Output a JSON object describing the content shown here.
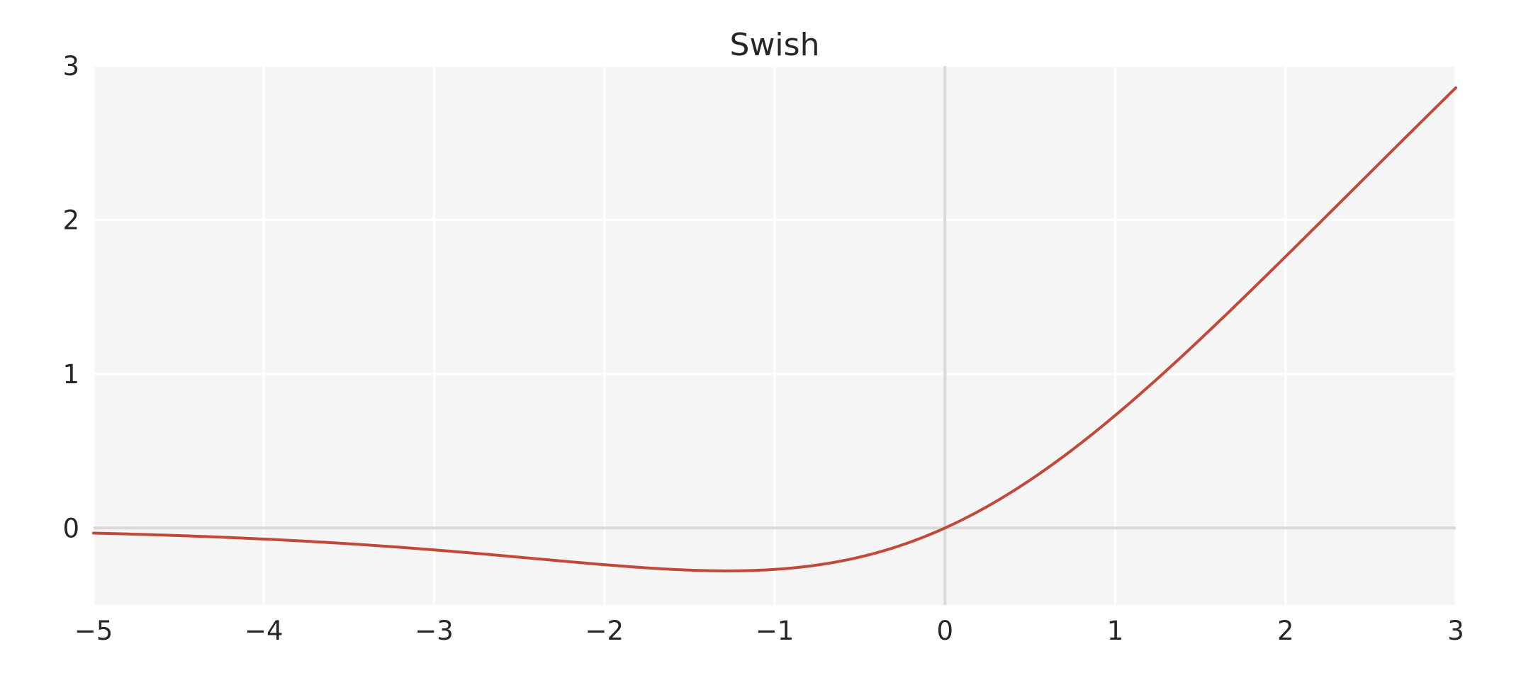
{
  "chart_data": {
    "type": "line",
    "title": "Swish",
    "function": "x * sigmoid(x)",
    "x_domain": [
      -5,
      3
    ],
    "xlim": [
      -5,
      3
    ],
    "ylim": [
      -0.5,
      3
    ],
    "xticks": [
      -5,
      -4,
      -3,
      -2,
      -1,
      0,
      1,
      2,
      3
    ],
    "xtick_labels": [
      "−5",
      "−4",
      "−3",
      "−2",
      "−1",
      "0",
      "1",
      "2",
      "3"
    ],
    "yticks": [
      0,
      1,
      2,
      3
    ],
    "ytick_labels": [
      "0",
      "1",
      "2",
      "3"
    ],
    "grid": true,
    "zero_lines": true,
    "xlabel": "",
    "ylabel": "",
    "series": [
      {
        "points": [
          [
            -5.0,
            -0.0335
          ],
          [
            -4.5,
            -0.0497
          ],
          [
            -4.0,
            -0.0719
          ],
          [
            -3.5,
            -0.1018
          ],
          [
            -3.0,
            -0.1423
          ],
          [
            -2.5,
            -0.1896
          ],
          [
            -2.0,
            -0.2384
          ],
          [
            -1.5,
            -0.2733
          ],
          [
            -1.28,
            -0.2785
          ],
          [
            -1.0,
            -0.2689
          ],
          [
            -0.5,
            -0.1888
          ],
          [
            0.0,
            0.0
          ],
          [
            0.5,
            0.3112
          ],
          [
            1.0,
            0.7311
          ],
          [
            1.5,
            1.2267
          ],
          [
            2.0,
            1.7616
          ],
          [
            2.5,
            2.3104
          ],
          [
            3.0,
            2.8577
          ]
        ]
      }
    ],
    "colors": {
      "line": "#C0493A",
      "plot_background": "#F5F5F5",
      "grid": "#FFFFFF",
      "zero_line": "#DADADA",
      "text": "#262626"
    }
  }
}
